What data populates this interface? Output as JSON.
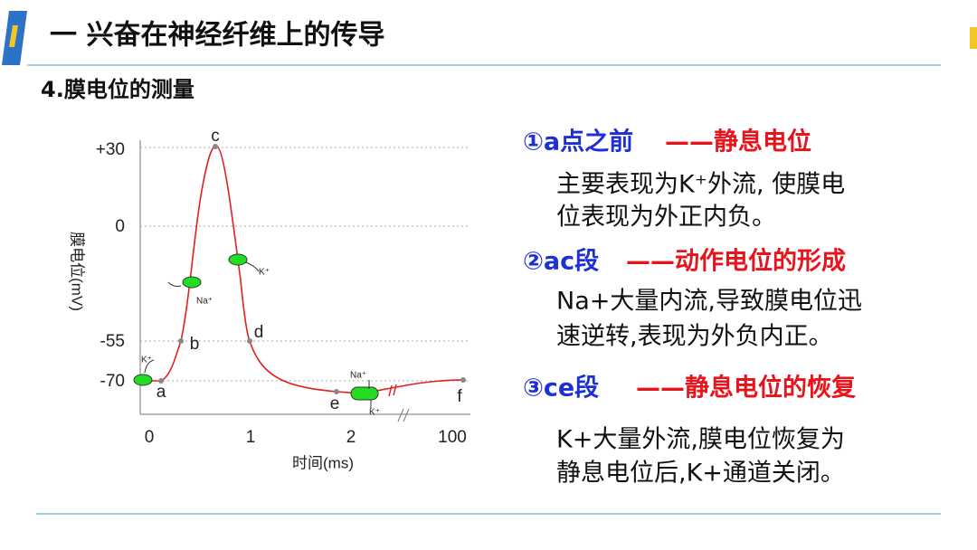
{
  "header": {
    "title": "一 兴奋在神经纤维上的传导",
    "subtitle": "4.膜电位的测量"
  },
  "figure": {
    "y_axis_label": "膜电位(mV)",
    "x_axis_label": "时间(ms)",
    "y_tick_labels": [
      "+30",
      "0",
      "-55",
      "-70"
    ],
    "x_tick_labels": [
      "0",
      "1",
      "2",
      "100"
    ],
    "point_labels": [
      "a",
      "b",
      "c",
      "d",
      "e",
      "f"
    ],
    "ion_labels": [
      "K⁺",
      "Na⁺",
      "K⁺",
      "Na⁺",
      "K⁺"
    ]
  },
  "points": [
    {
      "marker": "①a点之前",
      "stage": "——静息电位",
      "lines": [
        "主要表现为K⁺外流, 使膜电",
        "位表现为外正内负。"
      ]
    },
    {
      "marker": "②ac段",
      "stage": "——动作电位的形成",
      "lines": [
        "Na+大量内流,导致膜电位迅",
        "速逆转,表现为外负内正。"
      ]
    },
    {
      "marker": "③ce段",
      "stage": "——静息电位的恢复",
      "lines": [
        "K+大量外流,膜电位恢复为",
        "静息电位后,K+通道关闭。"
      ]
    }
  ]
}
